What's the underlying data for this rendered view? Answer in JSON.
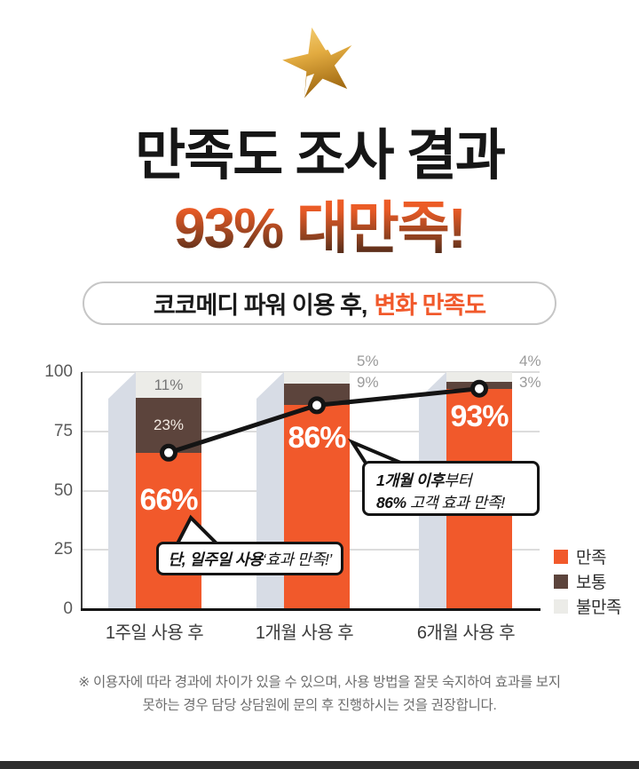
{
  "header": {
    "star_icon": "gold-star-icon",
    "title_line1": "만족도 조사 결과",
    "title_line2": "93% 대만족!",
    "accent_color": "#F1592B"
  },
  "subtitle_pill": {
    "text_black": "코코메디 파워 이용 후,",
    "text_accent": "변화 만족도"
  },
  "chart_data": {
    "type": "bar",
    "stacked": true,
    "categories": [
      "1주일 사용 후",
      "1개월 사용 후",
      "6개월 사용 후"
    ],
    "series": [
      {
        "name": "만족",
        "color": "#F1592B",
        "values": [
          66,
          86,
          93
        ]
      },
      {
        "name": "보통",
        "color": "#5C443C",
        "values": [
          23,
          9,
          3
        ]
      },
      {
        "name": "불만족",
        "color": "#ECECE8",
        "values": [
          11,
          5,
          4
        ]
      }
    ],
    "value_labels": {
      "만족": [
        "66%",
        "86%",
        "93%"
      ],
      "보통": [
        "23%",
        "9%",
        "3%"
      ],
      "불만족": [
        "11%",
        "5%",
        "4%"
      ]
    },
    "trend_line": {
      "on_series": "만족",
      "values": [
        66,
        86,
        93
      ],
      "marker": "circle",
      "color": "#141414"
    },
    "ylim": [
      0,
      100
    ],
    "yticks": [
      0,
      25,
      50,
      75,
      100
    ],
    "grid": true,
    "legend_position": "right",
    "shadow_color": "#D7DCE5",
    "title": "",
    "xlabel": "",
    "ylabel": ""
  },
  "annotations": {
    "bubble1_bold": "단, 일주일 사용",
    "bubble1_normal": " ‘효과 만족!’",
    "bubble2_line1_bold": "1개월 이후",
    "bubble2_line1_normal": "부터",
    "bubble2_line2_bold": "86%",
    "bubble2_line2_normal": " 고객 효과 만족!"
  },
  "footer": {
    "note_line1": "※ 이용자에 따라 경과에 차이가 있을 수 있으며, 사용 방법을 잘못 숙지하여 효과를 보지",
    "note_line2": "못하는 경우 담당 상담원에 문의 후 진행하시는 것을 권장합니다."
  }
}
